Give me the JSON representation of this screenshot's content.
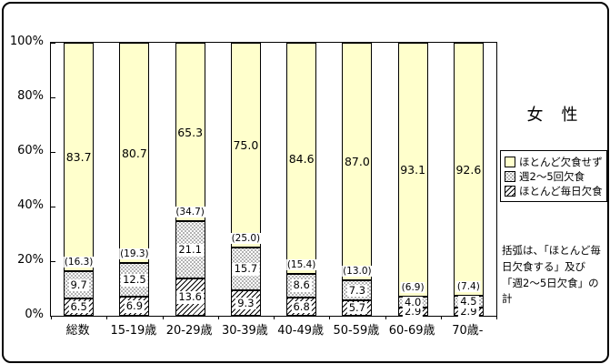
{
  "chart_data": {
    "type": "bar",
    "variant": "stacked-100-percent-column",
    "title": "女　性",
    "categories": [
      "総数",
      "15-19歳",
      "20-29歳",
      "30-39歳",
      "40-49歳",
      "50-59歳",
      "60-69歳",
      "70歳-"
    ],
    "series": [
      {
        "name": "ほとんど欠食せず",
        "swatch": "solid",
        "color": "#FFFFCC",
        "values": [
          83.7,
          80.7,
          65.3,
          75.0,
          84.6,
          87.0,
          93.1,
          92.6
        ]
      },
      {
        "name": "週2～5回欠食",
        "swatch": "dots",
        "color": "#FFFFFF",
        "values": [
          9.7,
          12.5,
          21.1,
          15.7,
          8.6,
          7.3,
          4.0,
          4.5
        ]
      },
      {
        "name": "ほとんど毎日欠食",
        "swatch": "hatch",
        "color": "#FFFFFF",
        "values": [
          6.5,
          6.9,
          13.6,
          9.3,
          6.8,
          5.7,
          2.9,
          2.9
        ]
      }
    ],
    "bracket_totals": [
      16.3,
      19.3,
      34.7,
      25.0,
      15.4,
      13.0,
      6.9,
      7.4
    ],
    "y_axis": {
      "ticks": [
        "100%",
        "80%",
        "60%",
        "40%",
        "20%",
        "0%"
      ],
      "min": 0,
      "max": 100,
      "grid": false
    },
    "legend_position": "right",
    "legend": [
      "ほとんど欠食せず",
      "週2～5回欠食",
      "ほとんど毎日欠食"
    ],
    "note": "括弧は、「ほとんど毎日欠食する」及び「週2～5日欠食」の計",
    "colors": {
      "none_segment": "#FFFFCC",
      "pattern_ink": "#000000",
      "background": "#FFFFFF",
      "border": "#000000"
    }
  }
}
